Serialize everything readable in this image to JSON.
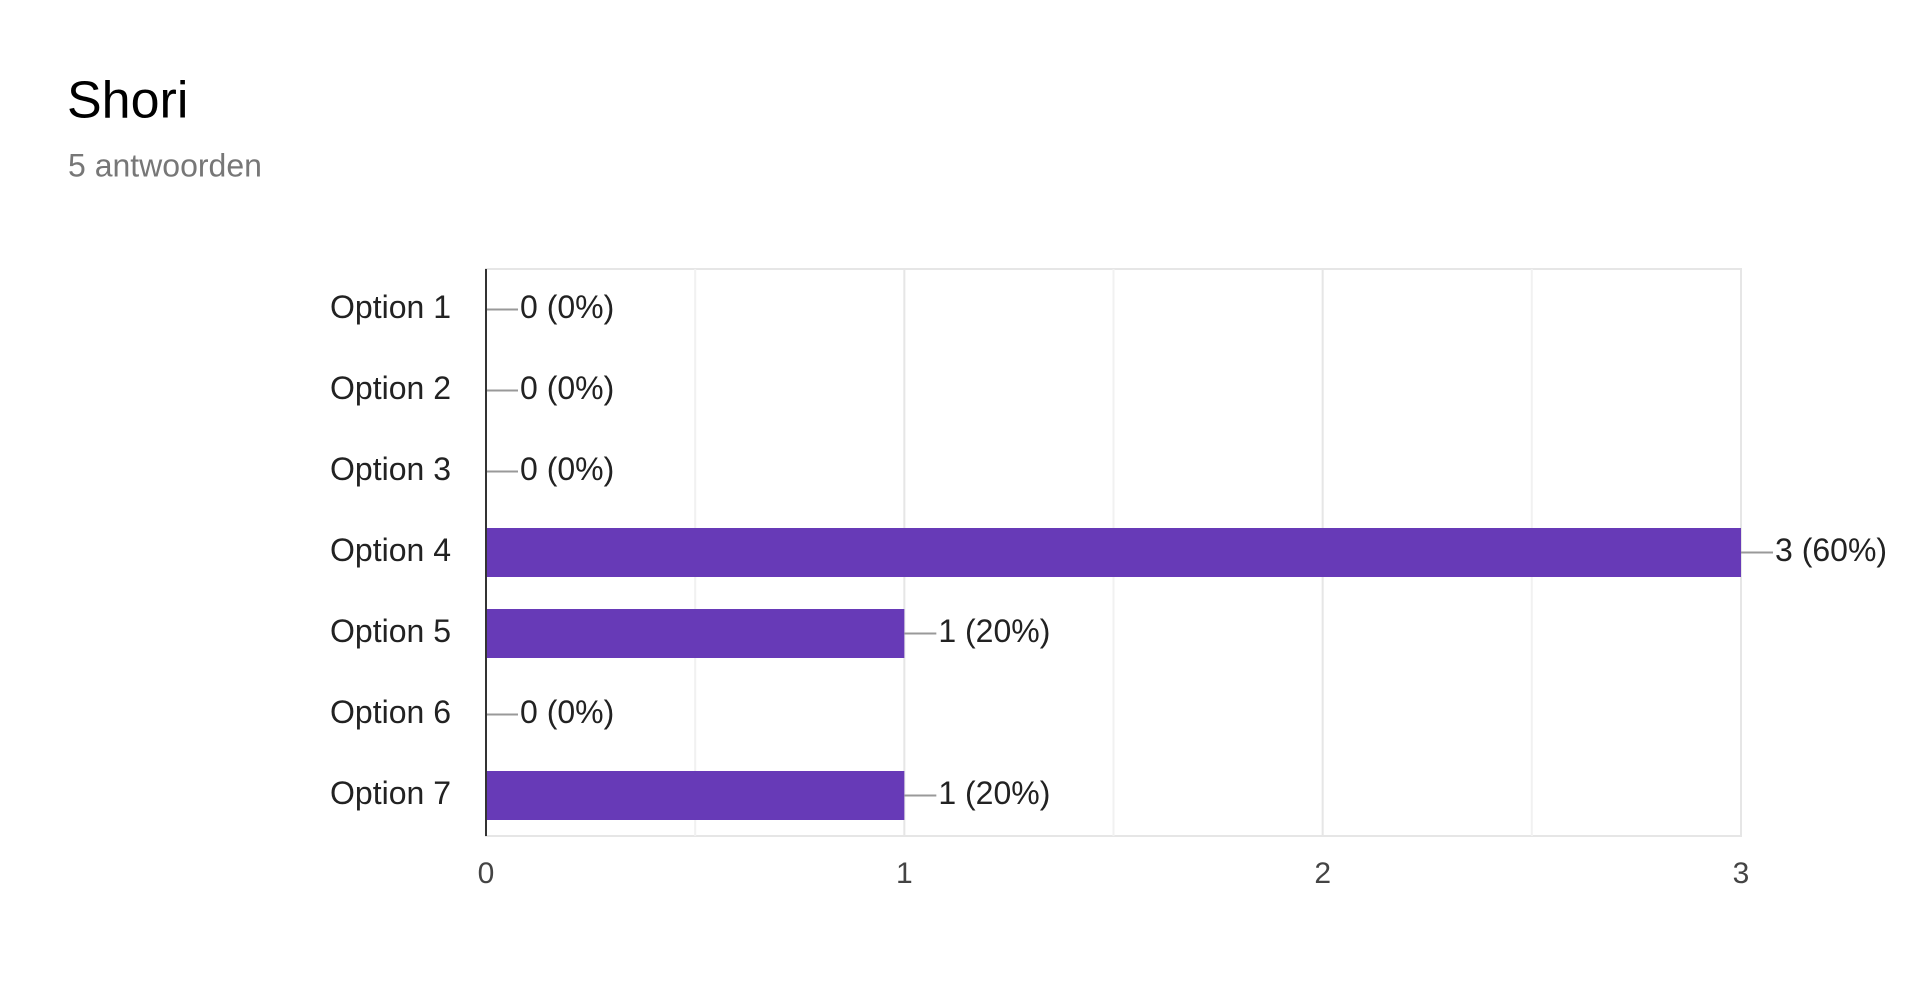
{
  "chart_data": {
    "type": "bar",
    "orientation": "horizontal",
    "title": "Shori",
    "subtitle": "5 antwoorden",
    "categories": [
      "Option 1",
      "Option 2",
      "Option 3",
      "Option 4",
      "Option 5",
      "Option 6",
      "Option 7"
    ],
    "values": [
      0,
      0,
      0,
      3,
      1,
      0,
      1
    ],
    "value_labels": [
      "0 (0%)",
      "0 (0%)",
      "0 (0%)",
      "3 (60%)",
      "1 (20%)",
      "0 (0%)",
      "1 (20%)"
    ],
    "color": "#673ab7",
    "xlim": [
      0,
      3
    ],
    "xticks": [
      0,
      1,
      2,
      3
    ],
    "xminorticks": [
      0.5,
      1.5,
      2.5
    ],
    "grid": true
  }
}
